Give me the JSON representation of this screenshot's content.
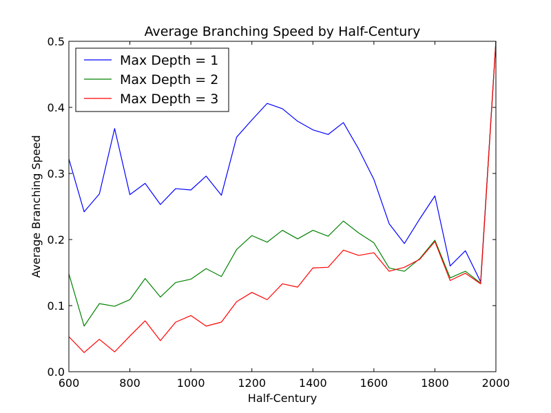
{
  "chart_data": {
    "type": "line",
    "title": "Average Branching Speed by Half-Century",
    "xlabel": "Half-Century",
    "ylabel": "Average Branching Speed",
    "xlim": [
      600,
      2000
    ],
    "ylim": [
      0.0,
      0.5
    ],
    "xticks": [
      600,
      800,
      1000,
      1200,
      1400,
      1600,
      1800,
      2000
    ],
    "xtick_labels": [
      "600",
      "800",
      "1000",
      "1200",
      "1400",
      "1600",
      "1800",
      "2000"
    ],
    "yticks": [
      0.0,
      0.1,
      0.2,
      0.3,
      0.4,
      0.5
    ],
    "ytick_labels": [
      "0.0",
      "0.1",
      "0.2",
      "0.3",
      "0.4",
      "0.5"
    ],
    "grid": false,
    "legend_position": "top-left",
    "x": [
      600,
      650,
      700,
      750,
      800,
      850,
      900,
      950,
      1000,
      1050,
      1100,
      1150,
      1200,
      1250,
      1300,
      1350,
      1400,
      1450,
      1500,
      1550,
      1600,
      1650,
      1700,
      1750,
      1800,
      1850,
      1900,
      1950,
      2000
    ],
    "series": [
      {
        "name": "Max Depth = 1",
        "color": "#0000ff",
        "values": [
          0.322,
          0.242,
          0.269,
          0.368,
          0.268,
          0.285,
          0.253,
          0.277,
          0.275,
          0.296,
          0.267,
          0.355,
          0.381,
          0.406,
          0.398,
          0.379,
          0.366,
          0.359,
          0.377,
          0.337,
          0.291,
          0.224,
          0.194,
          0.231,
          0.266,
          0.16,
          0.183,
          0.136,
          0.5
        ]
      },
      {
        "name": "Max Depth = 2",
        "color": "#008000",
        "values": [
          0.148,
          0.069,
          0.103,
          0.099,
          0.109,
          0.141,
          0.113,
          0.135,
          0.14,
          0.156,
          0.144,
          0.185,
          0.206,
          0.196,
          0.214,
          0.201,
          0.214,
          0.205,
          0.228,
          0.21,
          0.195,
          0.157,
          0.152,
          0.171,
          0.199,
          0.142,
          0.152,
          0.134,
          0.5
        ]
      },
      {
        "name": "Max Depth = 3",
        "color": "#ff0000",
        "values": [
          0.053,
          0.029,
          0.049,
          0.03,
          0.054,
          0.077,
          0.047,
          0.075,
          0.085,
          0.069,
          0.075,
          0.106,
          0.12,
          0.109,
          0.133,
          0.128,
          0.157,
          0.158,
          0.184,
          0.176,
          0.18,
          0.152,
          0.158,
          0.17,
          0.197,
          0.138,
          0.149,
          0.133,
          0.5
        ]
      }
    ]
  }
}
